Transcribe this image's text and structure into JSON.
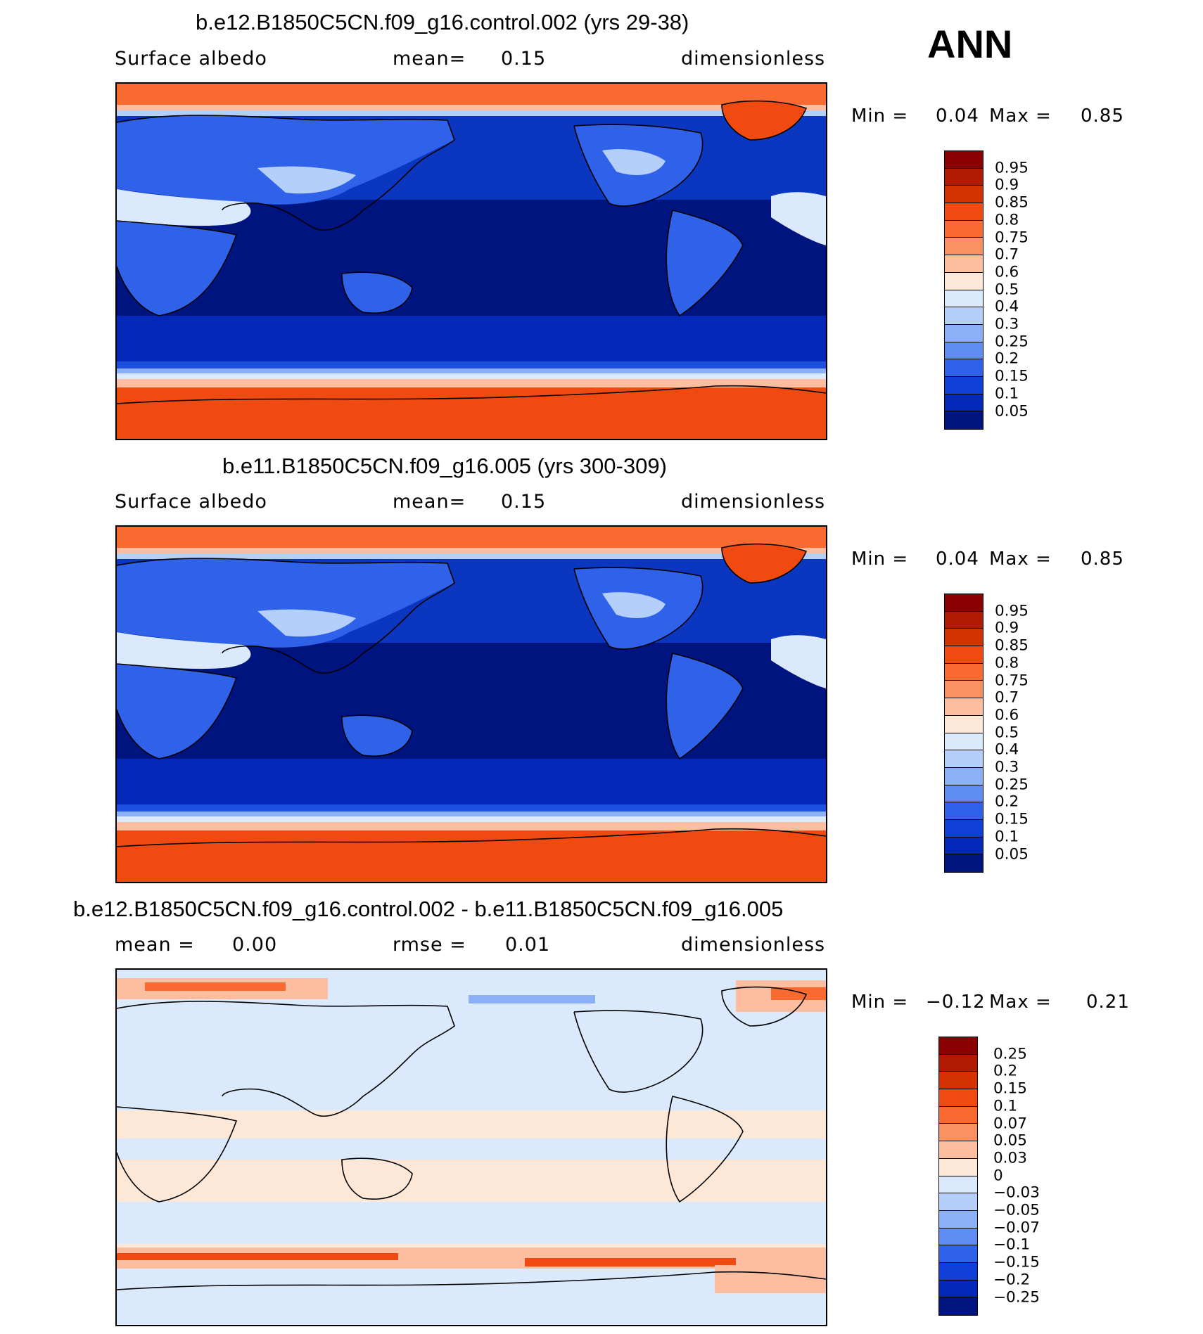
{
  "season": "ANN",
  "panels": [
    {
      "title": "b.e12.B1850C5CN.f09_g16.control.002 (yrs 29-38)",
      "left_label": "Surface albedo",
      "mid_label": "mean=",
      "mid_value": "0.15",
      "units": "dimensionless",
      "min_label": "Min =",
      "min_value": "0.04",
      "max_label": "Max =",
      "max_value": "0.85",
      "map_type": "absolute"
    },
    {
      "title": "b.e11.B1850C5CN.f09_g16.005 (yrs 300-309)",
      "left_label": "Surface albedo",
      "mid_label": "mean=",
      "mid_value": "0.15",
      "units": "dimensionless",
      "min_label": "Min =",
      "min_value": "0.04",
      "max_label": "Max =",
      "max_value": "0.85",
      "map_type": "absolute"
    },
    {
      "title": "b.e12.B1850C5CN.f09_g16.control.002 - b.e11.B1850C5CN.f09_g16.005",
      "left_label": "mean =",
      "left_value": "0.00",
      "mid_label": "rmse =",
      "mid_value": "0.01",
      "units": "dimensionless",
      "min_label": "Min =",
      "min_value": "−0.12",
      "max_label": "Max =",
      "max_value": "0.21",
      "map_type": "difference"
    }
  ],
  "colorbars": {
    "absolute": {
      "labels": [
        "0.95",
        "0.9",
        "0.85",
        "0.8",
        "0.75",
        "0.7",
        "0.6",
        "0.5",
        "0.4",
        "0.3",
        "0.25",
        "0.2",
        "0.15",
        "0.1",
        "0.05"
      ],
      "colors": [
        "#8b0000",
        "#b01a00",
        "#d43200",
        "#f04a10",
        "#f86a30",
        "#fb9060",
        "#fdbea0",
        "#fde8d8",
        "#dbe9fc",
        "#b4cffa",
        "#8cb0f8",
        "#5f8cf2",
        "#2f62e8",
        "#0f3ed8",
        "#0428b8",
        "#001480"
      ]
    },
    "difference": {
      "labels": [
        "0.25",
        "0.2",
        "0.15",
        "0.1",
        "0.07",
        "0.05",
        "0.03",
        "0",
        "−0.03",
        "−0.05",
        "−0.07",
        "−0.1",
        "−0.15",
        "−0.2",
        "−0.25"
      ],
      "colors": [
        "#8b0000",
        "#b01a00",
        "#d43200",
        "#f04a10",
        "#f86a30",
        "#fb9060",
        "#fdbea0",
        "#fde8d8",
        "#dbe9fc",
        "#b4cffa",
        "#8cb0f8",
        "#5f8cf2",
        "#2f62e8",
        "#0f3ed8",
        "#0428b8",
        "#001480"
      ]
    }
  }
}
